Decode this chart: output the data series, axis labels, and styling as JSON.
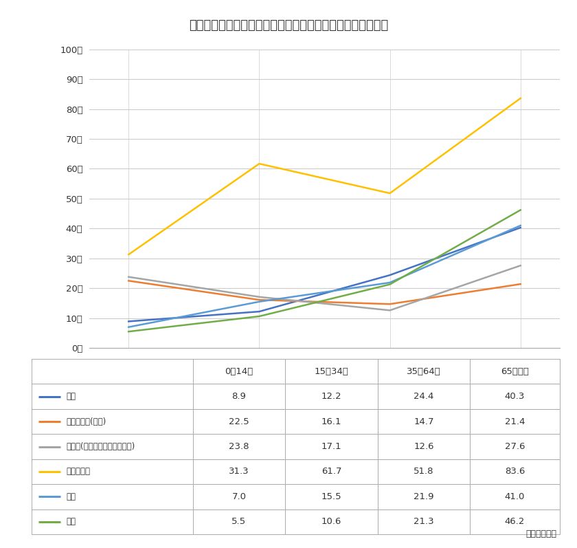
{
  "title": "》年齢階級別　退院患者の平均在院日数（令和２年９月）《",
  "title2": "》年齢階級別　退院患者の平均在院日数（令和２年９月）《",
  "title_text": "【年齢階級別　退院患者の平均在院日数（令和２年９月）】",
  "categories": [
    "0～14歳",
    "15～34歳",
    "35～64歳",
    "65歳以上"
  ],
  "series": [
    {
      "name": "総数",
      "values": [
        8.9,
        12.2,
        24.4,
        40.3
      ],
      "color": "#4472C4",
      "linewidth": 1.8
    },
    {
      "name": "悪性新生物(腫瘥)",
      "values": [
        22.5,
        16.1,
        14.7,
        21.4
      ],
      "color": "#ED7D31",
      "linewidth": 1.8
    },
    {
      "name": "心疾患(高血圧性のものを除く)",
      "values": [
        23.8,
        17.1,
        12.6,
        27.6
      ],
      "color": "#A5A5A5",
      "linewidth": 1.8
    },
    {
      "name": "脳血管疾患",
      "values": [
        31.3,
        61.7,
        51.8,
        83.6
      ],
      "color": "#FFC000",
      "linewidth": 1.8
    },
    {
      "name": "肺炎",
      "values": [
        7.0,
        15.5,
        21.9,
        41.0
      ],
      "color": "#5B9BD5",
      "linewidth": 1.8
    },
    {
      "name": "骨折",
      "values": [
        5.5,
        10.6,
        21.3,
        46.2
      ],
      "color": "#70AD47",
      "linewidth": 1.8
    }
  ],
  "yticks": [
    0,
    10,
    20,
    30,
    40,
    50,
    60,
    70,
    80,
    90,
    100
  ],
  "ylabel_suffix": "日",
  "ylim": [
    0,
    100
  ],
  "background_color": "#FFFFFF",
  "grid_color": "#CCCCCC",
  "title_fontsize": 13,
  "axis_fontsize": 9.5,
  "unit_text": "（単位：日）",
  "border_color": "#AAAAAA"
}
